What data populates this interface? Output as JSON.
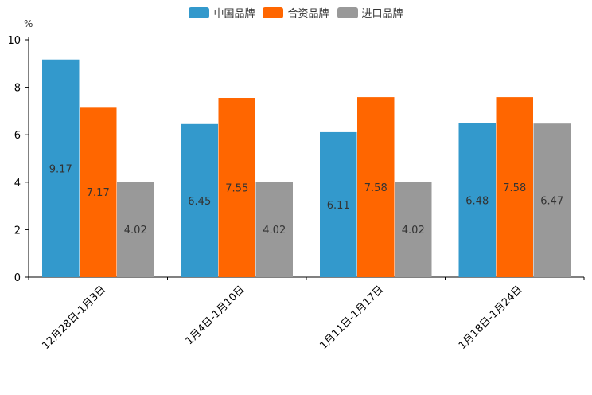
{
  "chart_data": {
    "type": "bar",
    "title": "",
    "ylabel": "%",
    "xlabel": "",
    "ylim": [
      0,
      10
    ],
    "yticks": [
      0,
      2,
      4,
      6,
      8,
      10
    ],
    "categories": [
      "12月28日-1月3日",
      "1月4日-1月10日",
      "1月11日-1月17日",
      "1月18日-1月24日"
    ],
    "series": [
      {
        "name": "中国品牌",
        "color": "#3399cc",
        "values": [
          9.17,
          6.45,
          6.11,
          6.48
        ]
      },
      {
        "name": "合资品牌",
        "color": "#ff6600",
        "values": [
          7.17,
          7.55,
          7.58,
          7.58
        ]
      },
      {
        "name": "进口品牌",
        "color": "#999999",
        "values": [
          4.02,
          4.02,
          4.02,
          6.47
        ]
      }
    ],
    "legend_position": "top-center",
    "grid": false
  }
}
